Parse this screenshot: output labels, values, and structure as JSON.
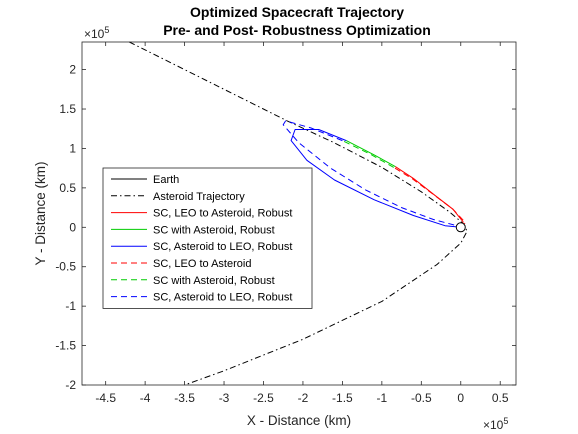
{
  "chart_data": {
    "type": "line",
    "title": [
      "Optimized Spacecraft Trajectory",
      "Pre- and Post- Robustness Optimization"
    ],
    "xlabel": "X - Distance (km)",
    "ylabel": "Y - Distance (km)",
    "x_exponent_label": "×10^5",
    "y_exponent_label": "×10^5",
    "xlim": [
      -4.8,
      0.7
    ],
    "ylim": [
      -2.0,
      2.35
    ],
    "xticks": [
      -4.5,
      -4,
      -3.5,
      -3,
      -2.5,
      -2,
      -1.5,
      -1,
      -0.5,
      0,
      0.5
    ],
    "xtick_labels": [
      "-4.5",
      "-4",
      "-3.5",
      "-3",
      "-2.5",
      "-2",
      "-1.5",
      "-1",
      "-0.5",
      "0",
      "0.5"
    ],
    "yticks": [
      -2,
      -1.5,
      -1,
      -0.5,
      0,
      0.5,
      1,
      1.5,
      2
    ],
    "ytick_labels": [
      "-2",
      "-1.5",
      "-1",
      "-0.5",
      "0",
      "0.5",
      "1",
      "1.5",
      "2"
    ],
    "grid": false,
    "legend_position": "middle-left",
    "series": [
      {
        "name": "Earth",
        "color": "#000000",
        "style": "solid",
        "points": [
          [
            0.0,
            0.0
          ]
        ]
      },
      {
        "name": "Asteroid Trajectory",
        "color": "#000000",
        "style": "dashdot",
        "points": [
          [
            -4.2,
            2.35
          ],
          [
            -3.0,
            1.75
          ],
          [
            -2.2,
            1.35
          ],
          [
            -1.6,
            1.07
          ],
          [
            -1.0,
            0.76
          ],
          [
            -0.5,
            0.45
          ],
          [
            -0.15,
            0.2
          ],
          [
            0.03,
            0.05
          ],
          [
            0.08,
            -0.05
          ],
          [
            0.0,
            -0.2
          ],
          [
            -0.3,
            -0.47
          ],
          [
            -1.0,
            -0.94
          ],
          [
            -2.0,
            -1.42
          ],
          [
            -3.0,
            -1.82
          ],
          [
            -3.5,
            -2.0
          ]
        ]
      },
      {
        "name": "SC, LEO to Asteroid, Robust",
        "color": "#ff0000",
        "style": "solid",
        "points": [
          [
            0.0,
            0.0
          ],
          [
            0.03,
            0.07
          ],
          [
            -0.1,
            0.23
          ],
          [
            -0.32,
            0.4
          ],
          [
            -0.6,
            0.62
          ],
          [
            -0.83,
            0.77
          ]
        ]
      },
      {
        "name": "SC with Asteroid, Robust",
        "color": "#00cc00",
        "style": "solid",
        "points": [
          [
            -0.83,
            0.77
          ],
          [
            -1.1,
            0.92
          ],
          [
            -1.45,
            1.1
          ]
        ]
      },
      {
        "name": "SC, Asteroid to LEO, Robust",
        "color": "#0000ff",
        "style": "solid",
        "points": [
          [
            -1.45,
            1.1
          ],
          [
            -1.8,
            1.24
          ],
          [
            -2.1,
            1.24
          ],
          [
            -2.15,
            1.1
          ],
          [
            -1.95,
            0.85
          ],
          [
            -1.6,
            0.6
          ],
          [
            -1.1,
            0.35
          ],
          [
            -0.6,
            0.15
          ],
          [
            -0.2,
            0.02
          ],
          [
            0.0,
            0.0
          ]
        ]
      },
      {
        "name": "SC, LEO to Asteroid",
        "color": "#ff0000",
        "style": "dashed",
        "points": [
          [
            0.0,
            0.0
          ],
          [
            0.06,
            0.06
          ],
          [
            -0.1,
            0.23
          ],
          [
            -0.35,
            0.42
          ],
          [
            -0.62,
            0.62
          ],
          [
            -0.85,
            0.76
          ]
        ]
      },
      {
        "name": "SC with Asteroid, Robust",
        "color": "#00cc00",
        "style": "dashed",
        "points": [
          [
            -0.85,
            0.76
          ],
          [
            -1.15,
            0.93
          ],
          [
            -1.5,
            1.1
          ]
        ]
      },
      {
        "name": "SC, Asteroid to LEO, Robust",
        "color": "#0000ff",
        "style": "dashed",
        "points": [
          [
            -1.5,
            1.1
          ],
          [
            -1.9,
            1.26
          ],
          [
            -2.22,
            1.35
          ],
          [
            -2.25,
            1.3
          ],
          [
            -2.05,
            1.07
          ],
          [
            -1.65,
            0.75
          ],
          [
            -1.2,
            0.47
          ],
          [
            -0.75,
            0.25
          ],
          [
            -0.35,
            0.1
          ],
          [
            -0.05,
            0.02
          ],
          [
            0.0,
            0.0
          ]
        ]
      }
    ]
  }
}
